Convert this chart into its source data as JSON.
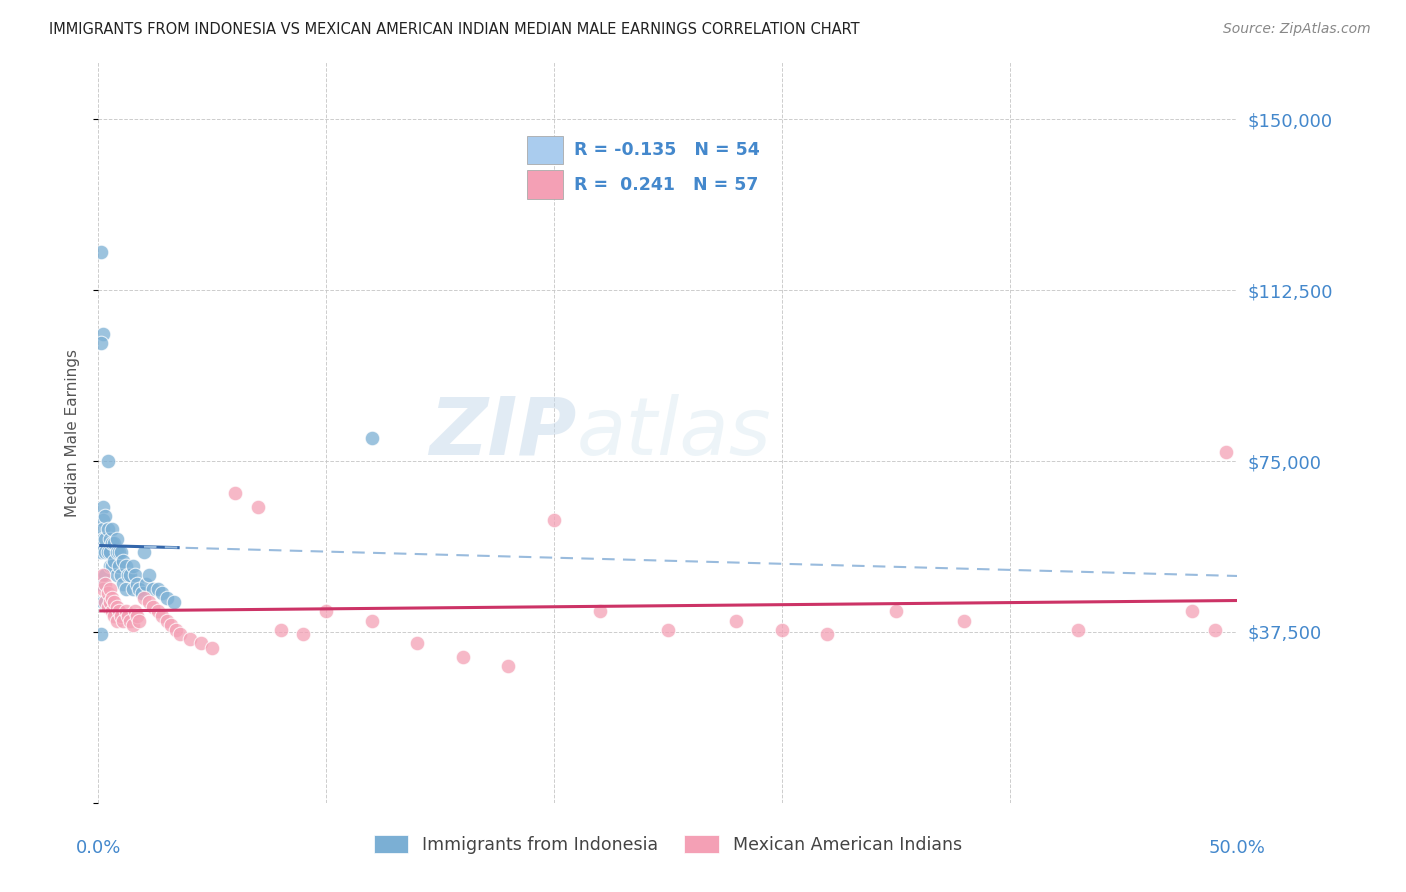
{
  "title": "IMMIGRANTS FROM INDONESIA VS MEXICAN AMERICAN INDIAN MEDIAN MALE EARNINGS CORRELATION CHART",
  "source": "Source: ZipAtlas.com",
  "ylabel": "Median Male Earnings",
  "xlim": [
    0.0,
    0.5
  ],
  "ylim": [
    0,
    162500
  ],
  "yticks": [
    0,
    37500,
    75000,
    112500,
    150000
  ],
  "ytick_labels": [
    "",
    "$37,500",
    "$75,000",
    "$112,500",
    "$150,000"
  ],
  "xticks": [
    0.0,
    0.1,
    0.2,
    0.3,
    0.4,
    0.5
  ],
  "xtick_labels": [
    "0.0%",
    "",
    "",
    "",
    "",
    "50.0%"
  ],
  "background_color": "#ffffff",
  "grid_color": "#c8c8c8",
  "blue_color": "#7bafd4",
  "pink_color": "#f4a0b5",
  "blue_line_color": "#3366aa",
  "pink_line_color": "#cc3366",
  "dashed_line_color": "#99bbdd",
  "title_color": "#222222",
  "label_color": "#4488cc",
  "legend_box_blue": "#aaccee",
  "legend_box_pink": "#f4a0b5",
  "R_blue": -0.135,
  "N_blue": 54,
  "R_pink": 0.241,
  "N_pink": 57,
  "watermark_zip": "ZIP",
  "watermark_atlas": "atlas",
  "blue_x": [
    0.001,
    0.001,
    0.001,
    0.002,
    0.002,
    0.002,
    0.002,
    0.002,
    0.003,
    0.003,
    0.003,
    0.003,
    0.004,
    0.004,
    0.004,
    0.005,
    0.005,
    0.005,
    0.006,
    0.006,
    0.006,
    0.007,
    0.007,
    0.008,
    0.008,
    0.008,
    0.009,
    0.009,
    0.01,
    0.01,
    0.011,
    0.011,
    0.012,
    0.012,
    0.013,
    0.014,
    0.015,
    0.015,
    0.016,
    0.017,
    0.018,
    0.019,
    0.02,
    0.021,
    0.022,
    0.024,
    0.026,
    0.028,
    0.03,
    0.033,
    0.002,
    0.001,
    0.001,
    0.12
  ],
  "blue_y": [
    121000,
    55000,
    48000,
    65000,
    62000,
    60000,
    58000,
    44000,
    63000,
    58000,
    55000,
    50000,
    75000,
    60000,
    55000,
    58000,
    55000,
    52000,
    60000,
    57000,
    52000,
    57000,
    53000,
    58000,
    55000,
    50000,
    55000,
    52000,
    55000,
    50000,
    53000,
    48000,
    52000,
    47000,
    50000,
    50000,
    52000,
    47000,
    50000,
    48000,
    47000,
    46000,
    55000,
    48000,
    50000,
    47000,
    47000,
    46000,
    45000,
    44000,
    103000,
    101000,
    37000,
    80000
  ],
  "pink_x": [
    0.002,
    0.002,
    0.003,
    0.003,
    0.004,
    0.004,
    0.005,
    0.005,
    0.006,
    0.006,
    0.007,
    0.007,
    0.008,
    0.008,
    0.009,
    0.01,
    0.011,
    0.012,
    0.013,
    0.014,
    0.015,
    0.016,
    0.017,
    0.018,
    0.02,
    0.022,
    0.024,
    0.026,
    0.028,
    0.03,
    0.032,
    0.034,
    0.036,
    0.04,
    0.045,
    0.05,
    0.06,
    0.07,
    0.08,
    0.09,
    0.1,
    0.12,
    0.14,
    0.16,
    0.18,
    0.2,
    0.22,
    0.25,
    0.28,
    0.3,
    0.32,
    0.35,
    0.38,
    0.43,
    0.48,
    0.49,
    0.495
  ],
  "pink_y": [
    50000,
    47000,
    48000,
    44000,
    46000,
    43000,
    47000,
    44000,
    45000,
    42000,
    44000,
    41000,
    43000,
    40000,
    42000,
    41000,
    40000,
    42000,
    41000,
    40000,
    39000,
    42000,
    41000,
    40000,
    45000,
    44000,
    43000,
    42000,
    41000,
    40000,
    39000,
    38000,
    37000,
    36000,
    35000,
    34000,
    68000,
    65000,
    38000,
    37000,
    42000,
    40000,
    35000,
    32000,
    30000,
    62000,
    42000,
    38000,
    40000,
    38000,
    37000,
    42000,
    40000,
    38000,
    42000,
    38000,
    77000
  ]
}
